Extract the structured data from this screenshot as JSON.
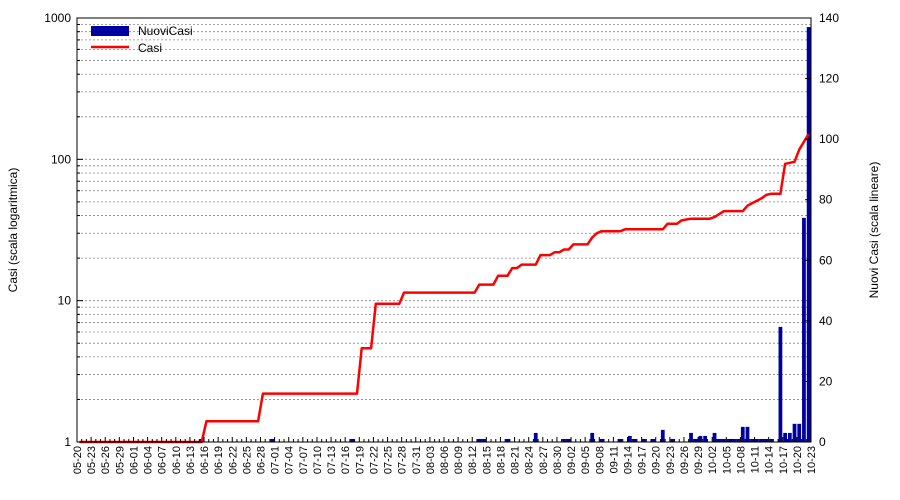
{
  "chart_data": {
    "type": "bar+line",
    "title": "",
    "y_left": {
      "label": "Casi (scala logaritmica)",
      "scale": "log",
      "ylim": [
        1,
        1000
      ],
      "ticks": [
        "1",
        "10",
        "100",
        "1000"
      ]
    },
    "y_right": {
      "label": "Nuovi Casi (scala lineare)",
      "scale": "linear",
      "ylim": [
        0,
        140
      ],
      "ticks": [
        "0",
        "20",
        "40",
        "60",
        "80",
        "100",
        "120",
        "140"
      ]
    },
    "x_tick_labels": [
      "05-20",
      "05-23",
      "05-26",
      "05-29",
      "06-01",
      "06-04",
      "06-07",
      "06-10",
      "06-13",
      "06-16",
      "06-19",
      "06-22",
      "06-25",
      "06-28",
      "07-01",
      "07-04",
      "07-07",
      "07-10",
      "07-13",
      "07-16",
      "07-19",
      "07-22",
      "07-25",
      "07-28",
      "07-31",
      "08-03",
      "08-06",
      "08-09",
      "08-12",
      "08-15",
      "08-18",
      "08-21",
      "08-24",
      "08-27",
      "08-30",
      "09-02",
      "09-05",
      "09-08",
      "09-11",
      "09-14",
      "09-17",
      "09-20",
      "09-23",
      "09-26",
      "09-29",
      "10-02",
      "10-05",
      "10-08",
      "10-11",
      "10-14",
      "10-17",
      "10-20",
      "10-23"
    ],
    "grid": true,
    "legend": {
      "position": "top-left",
      "entries": [
        {
          "name": "NuoviCasi",
          "color": "#0000a0",
          "kind": "bar"
        },
        {
          "name": "Casi",
          "color": "#ff0000",
          "kind": "line"
        }
      ]
    },
    "series": [
      {
        "name": "NuoviCasi",
        "type": "bar",
        "axis": "right",
        "color": "#0000a0",
        "bars": [
          [
            26,
            1
          ],
          [
            41,
            1
          ],
          [
            58,
            1
          ],
          [
            85,
            1
          ],
          [
            86,
            1
          ],
          [
            91,
            1
          ],
          [
            97,
            3
          ],
          [
            103,
            1
          ],
          [
            104,
            1
          ],
          [
            109,
            3
          ],
          [
            111,
            1
          ],
          [
            115,
            1
          ],
          [
            117,
            2
          ],
          [
            118,
            1
          ],
          [
            120,
            1
          ],
          [
            122,
            1
          ],
          [
            124,
            4
          ],
          [
            126,
            1
          ],
          [
            130,
            3
          ],
          [
            131,
            1
          ],
          [
            132,
            2
          ],
          [
            133,
            2
          ],
          [
            135,
            3
          ],
          [
            136,
            1
          ],
          [
            137,
            1
          ],
          [
            138,
            1
          ],
          [
            139,
            1
          ],
          [
            140,
            1
          ],
          [
            141,
            5
          ],
          [
            142,
            5
          ],
          [
            143,
            1
          ],
          [
            144,
            1
          ],
          [
            145,
            1
          ],
          [
            146,
            1
          ],
          [
            147,
            1
          ],
          [
            149,
            38
          ],
          [
            150,
            3
          ],
          [
            151,
            3
          ],
          [
            152,
            6
          ],
          [
            153,
            6
          ],
          [
            154,
            74
          ],
          [
            155,
            137
          ]
        ]
      },
      {
        "name": "Casi",
        "type": "line",
        "axis": "left",
        "color": "#ff0000",
        "points": [
          [
            0,
            1
          ],
          [
            26,
            1
          ],
          [
            27,
            1.4
          ],
          [
            38,
            1.4
          ],
          [
            39,
            2.2
          ],
          [
            59,
            2.2
          ],
          [
            60,
            4.6
          ],
          [
            62,
            4.6
          ],
          [
            63,
            9.5
          ],
          [
            68,
            9.5
          ],
          [
            69,
            11.4
          ],
          [
            84,
            11.4
          ],
          [
            85,
            13
          ],
          [
            88,
            13
          ],
          [
            89,
            15
          ],
          [
            91,
            15
          ],
          [
            92,
            17
          ],
          [
            93,
            17
          ],
          [
            94,
            18
          ],
          [
            97,
            18
          ],
          [
            98,
            21
          ],
          [
            100,
            21
          ],
          [
            101,
            22
          ],
          [
            102,
            22
          ],
          [
            103,
            23
          ],
          [
            104,
            23
          ],
          [
            105,
            25
          ],
          [
            108,
            25
          ],
          [
            109,
            28
          ],
          [
            110,
            30
          ],
          [
            111,
            31
          ],
          [
            115,
            31
          ],
          [
            116,
            32
          ],
          [
            124,
            32
          ],
          [
            125,
            35
          ],
          [
            127,
            35
          ],
          [
            128,
            37
          ],
          [
            130,
            38
          ],
          [
            134,
            38
          ],
          [
            135,
            39
          ],
          [
            136,
            41
          ],
          [
            137,
            43
          ],
          [
            141,
            43
          ],
          [
            142,
            47
          ],
          [
            143,
            49
          ],
          [
            144,
            51
          ],
          [
            145,
            53
          ],
          [
            146,
            56
          ],
          [
            147,
            57
          ],
          [
            149,
            57
          ],
          [
            150,
            93
          ],
          [
            152,
            96
          ],
          [
            153,
            117
          ],
          [
            155,
            151
          ]
        ]
      }
    ],
    "x_day_count": 156
  }
}
